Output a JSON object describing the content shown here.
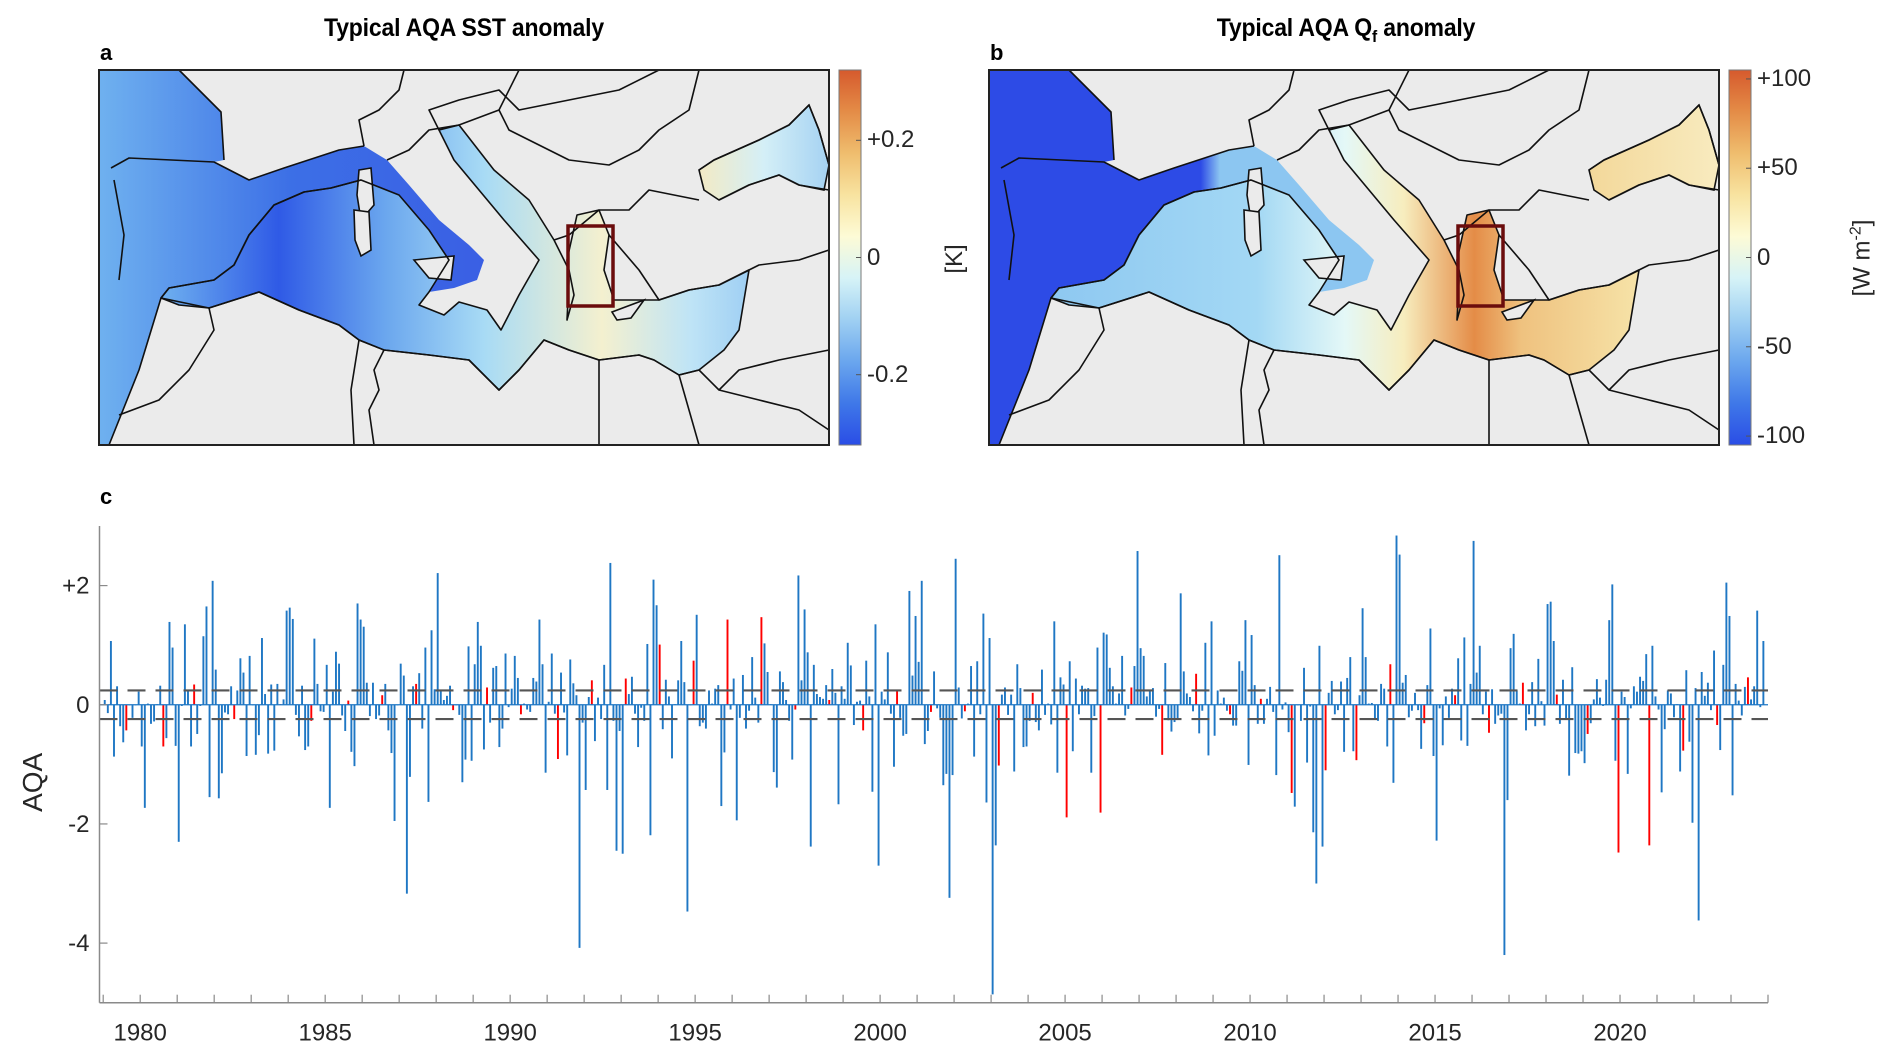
{
  "panels": {
    "a": {
      "letter": "a",
      "title": "Typical AQA SST anomaly",
      "colorbar": {
        "unit": "[K]",
        "range": [
          -0.32,
          0.32
        ],
        "ticks": [
          {
            "value": 0.2,
            "label": "+0.2"
          },
          {
            "value": 0,
            "label": "0"
          },
          {
            "value": -0.2,
            "label": "-0.2"
          }
        ]
      }
    },
    "b": {
      "letter": "b",
      "title_main": "Typical AQA Q",
      "title_sub": "f",
      "title_end": " anomaly",
      "colorbar": {
        "unit_main": "[W m",
        "unit_sup": "-2",
        "unit_end": "]",
        "range": [
          -105,
          105
        ],
        "ticks": [
          {
            "value": 100,
            "label": "+100"
          },
          {
            "value": 50,
            "label": "+50"
          },
          {
            "value": 0,
            "label": "0"
          },
          {
            "value": -50,
            "label": "-50"
          },
          {
            "value": -100,
            "label": "-100"
          }
        ]
      }
    },
    "c": {
      "letter": "c"
    }
  },
  "colors": {
    "bar_default": "#1f77c4",
    "bar_highlight": "#ff0000",
    "threshold_line": "#555555",
    "box_outline": "#6b0c0c",
    "land": "#ebebeb",
    "coast": "#111111"
  },
  "chart_data": {
    "type": "bar",
    "title": "",
    "xlabel": "",
    "ylabel": "AQA",
    "xlim": [
      1978.9,
      2024.0
    ],
    "ylim": [
      -5,
      3
    ],
    "yticks": [
      {
        "value": 2,
        "label": "+2"
      },
      {
        "value": 0,
        "label": "0"
      },
      {
        "value": -2,
        "label": "-2"
      },
      {
        "value": -4,
        "label": "-4"
      }
    ],
    "xticks_major": [
      1980,
      1985,
      1990,
      1995,
      2000,
      2005,
      2010,
      2015,
      2020
    ],
    "xticks_minor_step": 1,
    "thresholds": [
      0.24,
      -0.24
    ],
    "grid": false,
    "start_year": 1979,
    "step": "monthly",
    "series": [
      {
        "name": "AQA",
        "values": [
          0.08,
          -0.14,
          1.07,
          -0.87,
          0.31,
          -0.36,
          -0.63,
          -0.43,
          0.0,
          -0.22,
          0.0,
          0.22,
          -0.7,
          -1.73,
          0.02,
          -0.32,
          -0.28,
          0.01,
          0.32,
          -0.7,
          -0.56,
          1.39,
          0.96,
          -0.69,
          -2.3,
          -0.02,
          1.35,
          0.23,
          -0.7,
          0.34,
          -0.49,
          -0.02,
          1.15,
          1.65,
          -1.55,
          2.08,
          0.59,
          -1.57,
          -1.15,
          -0.13,
          -0.16,
          0.31,
          -0.24,
          0.24,
          0.78,
          0.54,
          -0.86,
          0.82,
          0.0,
          -0.84,
          -0.51,
          1.12,
          0.18,
          -0.82,
          0.34,
          -0.77,
          0.35,
          0.01,
          0.09,
          1.58,
          1.63,
          1.44,
          -0.17,
          -0.53,
          0.32,
          -0.76,
          -0.7,
          -0.27,
          1.11,
          0.35,
          -0.11,
          -0.12,
          0.67,
          -1.73,
          0.22,
          0.89,
          0.69,
          -0.18,
          -0.44,
          0.07,
          -0.79,
          -1.03,
          1.7,
          1.43,
          1.31,
          0.37,
          -0.19,
          0.37,
          -0.24,
          -0.18,
          0.16,
          0.35,
          -0.43,
          -0.81,
          -1.95,
          0.0,
          0.69,
          0.49,
          -3.17,
          -1.21,
          0.31,
          0.35,
          0.53,
          -0.4,
          0.96,
          -1.63,
          1.25,
          0.26,
          2.21,
          0.24,
          0.08,
          0.15,
          0.32,
          -0.09,
          0.0,
          -0.17,
          -1.3,
          -0.92,
          0.98,
          -0.94,
          0.68,
          1.39,
          0.99,
          -0.75,
          0.29,
          -0.3,
          0.62,
          0.65,
          -0.71,
          -0.4,
          0.86,
          -0.04,
          0.27,
          0.82,
          0.45,
          -0.16,
          0.02,
          -0.08,
          -0.12,
          0.45,
          0.39,
          1.43,
          0.68,
          -1.14,
          0.05,
          0.86,
          -0.15,
          -0.91,
          0.54,
          -0.13,
          -0.85,
          0.76,
          0.36,
          0.16,
          -4.08,
          -0.3,
          -1.43,
          0.13,
          0.41,
          -0.61,
          0.12,
          -0.24,
          0.67,
          -1.43,
          2.38,
          -0.27,
          -2.45,
          -0.44,
          -2.5,
          0.44,
          0.18,
          0.47,
          -0.15,
          -0.71,
          -0.05,
          -0.27,
          1.02,
          -2.19,
          2.1,
          1.67,
          1.01,
          -0.41,
          0.42,
          0.14,
          -0.9,
          0.01,
          0.41,
          1.07,
          0.38,
          -3.47,
          -0.01,
          0.74,
          1.51,
          -0.36,
          -0.3,
          -0.4,
          0.24,
          0.02,
          0.27,
          0.33,
          -1.7,
          -0.8,
          1.43,
          -0.08,
          0.44,
          -1.94,
          -0.22,
          0.5,
          -0.4,
          -0.1,
          0.8,
          0.12,
          -0.3,
          1.47,
          1.03,
          0.55,
          0.01,
          -1.13,
          -1.39,
          0.56,
          0.38,
          0.08,
          -0.27,
          -0.92,
          -0.08,
          2.17,
          0.41,
          1.6,
          0.88,
          -2.38,
          0.67,
          0.18,
          0.13,
          0.1,
          0.33,
          0.08,
          0.6,
          0.2,
          -1.67,
          0.31,
          0.1,
          1.04,
          0.66,
          -0.34,
          0.05,
          0.07,
          -0.43,
          0.74,
          0.14,
          -1.46,
          1.35,
          -2.7,
          0.22,
          0.09,
          0.88,
          -0.15,
          -1.04,
          0.25,
          -0.22,
          -0.52,
          -0.49,
          1.91,
          0.49,
          1.49,
          0.72,
          2.08,
          -0.66,
          -0.44,
          -0.12,
          0.56,
          -0.06,
          -0.22,
          -1.35,
          -1.16,
          -3.24,
          -1.18,
          2.45,
          0.29,
          -0.23,
          -0.11,
          0.02,
          0.65,
          -0.87,
          0.73,
          -0.16,
          1.53,
          -1.64,
          1.12,
          -4.86,
          -2.36,
          -1.02,
          0.17,
          0.29,
          -0.17,
          0.17,
          -1.12,
          0.68,
          0.28,
          -0.71,
          -0.7,
          -0.27,
          0.2,
          -0.29,
          -0.43,
          0.59,
          -0.17,
          0.02,
          -0.33,
          1.4,
          -1.14,
          0.46,
          0.34,
          -1.89,
          0.73,
          -0.78,
          0.44,
          -0.16,
          0.32,
          0.27,
          0.28,
          -1.14,
          -0.19,
          0.96,
          -1.81,
          1.21,
          1.18,
          0.62,
          0.31,
          0.02,
          0.19,
          0.82,
          -0.18,
          -0.07,
          0.29,
          0.65,
          2.58,
          0.95,
          0.82,
          0.14,
          0.24,
          0.28,
          -0.2,
          -0.07,
          -0.84,
          0.7,
          -0.26,
          -0.45,
          -0.29,
          -0.23,
          1.87,
          0.56,
          0.19,
          0.13,
          -0.11,
          0.52,
          -0.48,
          -0.1,
          1.04,
          -0.85,
          1.4,
          -0.52,
          0.24,
          0.02,
          0.12,
          -0.1,
          -0.16,
          -0.35,
          -0.35,
          0.73,
          0.57,
          1.42,
          -1.01,
          1.17,
          0.33,
          -0.32,
          0.1,
          -0.32,
          0.1,
          0.3,
          -0.12,
          -1.18,
          2.51,
          -0.08,
          0.04,
          -0.46,
          -1.48,
          -1.71,
          -0.01,
          -0.27,
          0.62,
          -0.97,
          -0.03,
          -2.14,
          -3.0,
          0.99,
          -2.38,
          -1.1,
          0.2,
          0.4,
          -0.16,
          -0.09,
          0.39,
          -0.79,
          0.45,
          0.8,
          -0.78,
          -0.93,
          0.16,
          1.62,
          0.8,
          0.02,
          0.03,
          -0.24,
          -0.27,
          0.35,
          0.27,
          -0.7,
          0.68,
          -1.31,
          2.84,
          2.52,
          0.37,
          0.5,
          -0.21,
          -0.1,
          0.2,
          -0.09,
          -0.74,
          -0.31,
          0.33,
          1.28,
          -0.86,
          -2.28,
          -0.06,
          -0.68,
          0.14,
          -0.22,
          0.27,
          0.16,
          0.78,
          -0.6,
          1.13,
          -0.69,
          0.35,
          2.75,
          0.54,
          0.99,
          -0.16,
          0.22,
          -0.47,
          0.26,
          -0.32,
          -0.18,
          -0.15,
          -4.2,
          -1.6,
          0.95,
          1.19,
          0.24,
          0.02,
          0.37,
          -0.43,
          -0.16,
          0.38,
          -0.36,
          0.77,
          0.06,
          -0.35,
          1.69,
          1.73,
          1.07,
          0.17,
          -0.32,
          0.42,
          -0.23,
          -1.19,
          0.63,
          -0.81,
          -0.82,
          -0.78,
          -0.98,
          -0.49,
          -0.31,
          0.09,
          0.43,
          0.12,
          -0.02,
          0.42,
          1.42,
          2.02,
          -0.94,
          -2.48,
          0.22,
          0.13,
          -1.16,
          -0.06,
          0.31,
          0.22,
          0.47,
          0.4,
          0.85,
          -2.36,
          0.99,
          0.14,
          -0.08,
          -1.47,
          -0.41,
          0.24,
          0.19,
          -0.21,
          0.01,
          -1.12,
          -0.77,
          0.58,
          -0.62,
          -1.98,
          0.28,
          -3.62,
          0.55,
          0.15,
          0.37,
          -0.09,
          0.91,
          -0.34,
          -0.76,
          0.67,
          2.05,
          1.49,
          -1.52,
          0.35,
          0.07,
          -0.18,
          0.3,
          0.46,
          0.09,
          0.31,
          1.58,
          -0.04,
          1.07
        ]
      }
    ],
    "highlight_indices": [
      7,
      19,
      29,
      42,
      57,
      67,
      79,
      90,
      101,
      113,
      124,
      135,
      147,
      158,
      169,
      180,
      191,
      202,
      213,
      224,
      235,
      246,
      257,
      268,
      279,
      290,
      301,
      312,
      323,
      333,
      343,
      354,
      365,
      375,
      385,
      396,
      406,
      417,
      428,
      438,
      449,
      460,
      471,
      481,
      491,
      501,
      512,
      523,
      533
    ]
  }
}
